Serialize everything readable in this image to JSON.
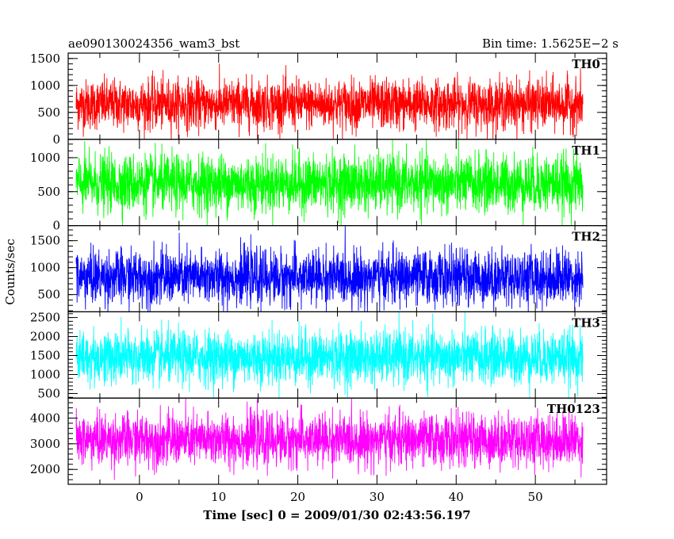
{
  "chart_data": {
    "type": "line",
    "title": "ae090130024356_wam3_bst",
    "bin_time_label": "Bin time: 1.5625E−2 s",
    "xlabel": "Time [sec] 0 = 2009/01/30 02:43:56.197",
    "ylabel": "Counts/sec",
    "xlim": [
      -9,
      59
    ],
    "data_range": [
      -8,
      56
    ],
    "x_ticks": [
      0,
      10,
      20,
      30,
      40,
      50
    ],
    "panels": [
      {
        "name": "TH0",
        "color": "#ff0000",
        "ylim": [
          0,
          1600
        ],
        "y_ticks": [
          0,
          500,
          1000,
          1500
        ],
        "mean": 650,
        "spread": 230,
        "min": 0,
        "max": 1600
      },
      {
        "name": "TH1",
        "color": "#00ff00",
        "ylim": [
          0,
          1270
        ],
        "y_ticks": [
          0,
          500,
          1000
        ],
        "mean": 620,
        "spread": 210,
        "min": 0,
        "max": 1270
      },
      {
        "name": "TH2",
        "color": "#0000ff",
        "ylim": [
          180,
          1780
        ],
        "y_ticks": [
          500,
          1000,
          1500
        ],
        "mean": 820,
        "spread": 250,
        "min": 180,
        "max": 1780
      },
      {
        "name": "TH3",
        "color": "#00ffff",
        "ylim": [
          380,
          2650
        ],
        "y_ticks": [
          500,
          1000,
          1500,
          2000,
          2500
        ],
        "mean": 1450,
        "spread": 350,
        "min": 380,
        "max": 2650
      },
      {
        "name": "TH0123",
        "color": "#ff00ff",
        "ylim": [
          1420,
          4780
        ],
        "y_ticks": [
          2000,
          3000,
          4000
        ],
        "mean": 3150,
        "spread": 500,
        "min": 1420,
        "max": 4780
      }
    ],
    "grid": false,
    "legend": "panel labels top-right"
  }
}
